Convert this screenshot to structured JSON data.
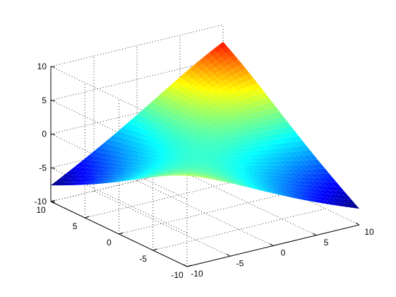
{
  "chart_data": {
    "type": "surface",
    "title": "",
    "xlabel": "",
    "ylabel": "",
    "zlabel": "",
    "xlim": [
      -10,
      10
    ],
    "ylim": [
      -10,
      10
    ],
    "zlim": [
      -10,
      10
    ],
    "x_ticks": [
      "-10",
      "-5",
      "0",
      "5",
      "10"
    ],
    "y_ticks": [
      "-10",
      "-5",
      "0",
      "5",
      "10"
    ],
    "z_ticks": [
      "-10",
      "-5",
      "0",
      "5",
      "10"
    ],
    "grid": true,
    "box": true,
    "colormap": "jet",
    "surface_samples": {
      "description_of_shape": "saddle-like ridge peaking near (x=10, y=10)",
      "points": [
        {
          "x": -10,
          "y": 10,
          "z": -7.5
        },
        {
          "x": 10,
          "y": 10,
          "z": 9.8
        },
        {
          "x": -10,
          "y": -10,
          "z": -2.5
        },
        {
          "x": 10,
          "y": -10,
          "z": -7.5
        },
        {
          "x": 0,
          "y": 0,
          "z": 0
        }
      ]
    },
    "colors": {
      "low": "#00008f",
      "mid": "#80ff80",
      "high": "#800000"
    }
  }
}
